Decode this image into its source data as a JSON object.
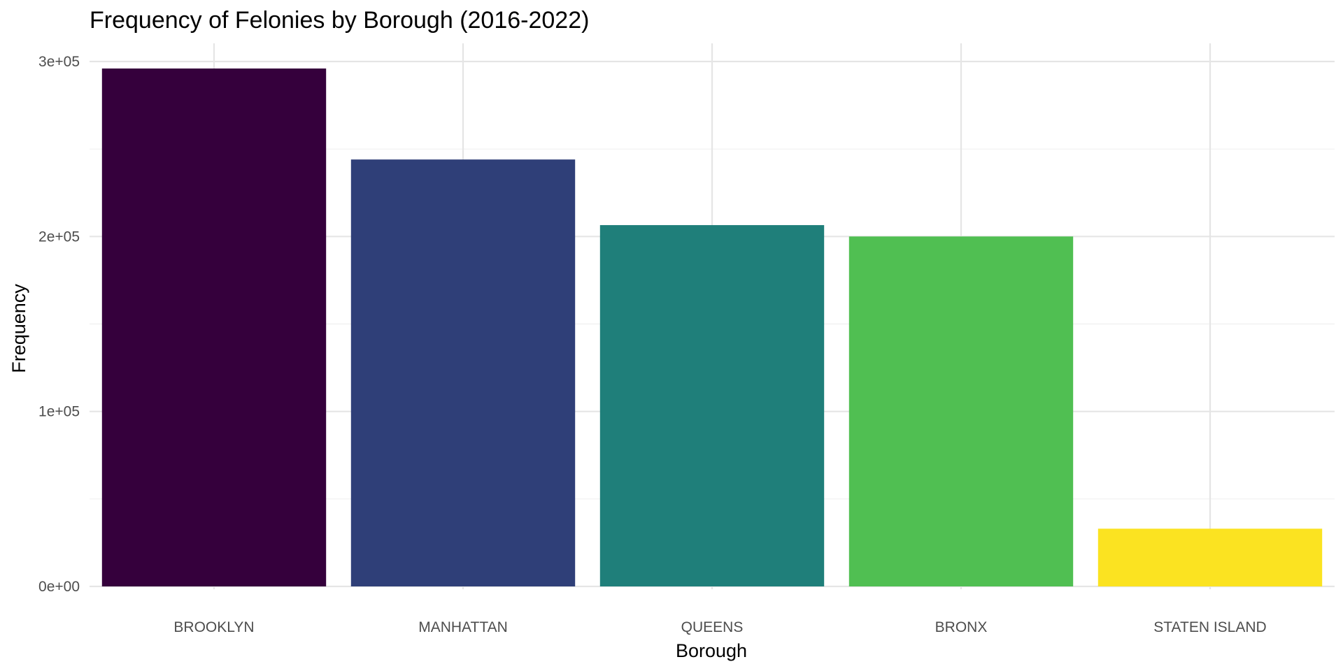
{
  "chart_data": {
    "type": "bar",
    "title": "Frequency of Felonies by Borough (2016-2022)",
    "xlabel": "Borough",
    "ylabel": "Frequency",
    "categories": [
      "BROOKLYN",
      "MANHATTAN",
      "QUEENS",
      "BRONX",
      "STATEN ISLAND"
    ],
    "values": [
      296000,
      244000,
      206500,
      200000,
      33000
    ],
    "colors": [
      "#35003c",
      "#2f3f78",
      "#1f7f7a",
      "#50bf52",
      "#fbe321"
    ],
    "ylim": [
      0,
      300000
    ],
    "yticks": [
      0,
      100000,
      200000,
      300000
    ],
    "ytick_labels": [
      "0e+00",
      "1e+05",
      "2e+05",
      "3e+05"
    ],
    "grid": true,
    "legend": "none"
  }
}
